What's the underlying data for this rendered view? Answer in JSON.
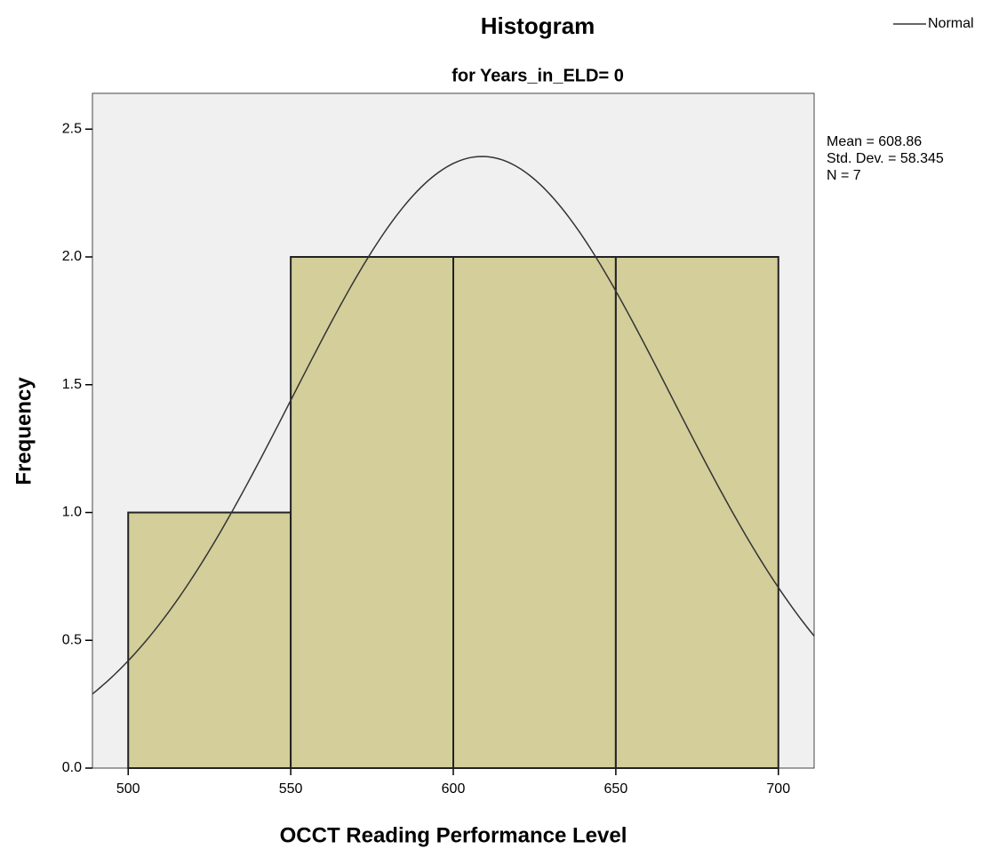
{
  "chart_data": {
    "type": "histogram",
    "title": "Histogram",
    "subtitle": "for Years_in_ELD= 0",
    "x_label": "OCCT Reading Performance Level",
    "y_label": "Frequency",
    "bins": [
      500,
      550,
      600,
      650,
      700
    ],
    "counts": [
      1,
      2,
      2,
      2
    ],
    "color": "#d3ce9a",
    "xlim": [
      489,
      711
    ],
    "xticks": [
      500,
      550,
      600,
      650,
      700
    ],
    "ylim": [
      0,
      2.64
    ],
    "yticks": [
      {
        "value": 0,
        "label": "0.0"
      },
      0.5,
      {
        "value": 1,
        "label": "1.0"
      },
      1.5,
      {
        "value": 2,
        "label": "2.0"
      },
      2.5
    ],
    "normal": {
      "name": "Normal",
      "mean": 608.86,
      "sd": 58.345,
      "n": 7,
      "labels": [
        "Mean = 608.86",
        "Std. Dev. = 58.345",
        "N = 7"
      ]
    },
    "legend": "top-right"
  }
}
